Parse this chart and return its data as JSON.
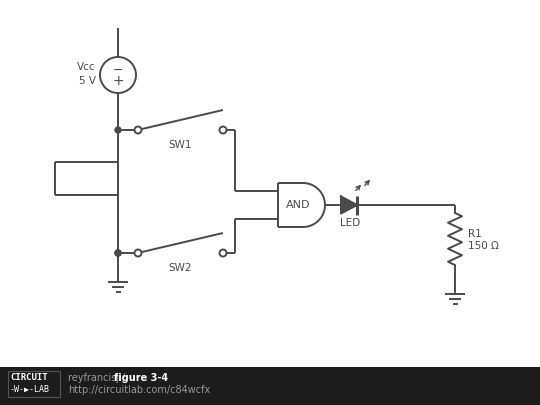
{
  "bg_color": "#ffffff",
  "lc": "#4a4a4a",
  "lw": 1.4,
  "footer_bg": "#1c1c1c",
  "footer_author": "reyfrancisj / ",
  "footer_title": "figure 3-4",
  "footer_url": "http://circuitlab.com/c84wcfx",
  "vcc_text": "Vcc\n5 V",
  "sw1_text": "SW1",
  "sw2_text": "SW2",
  "and_text": "AND",
  "led_text": "LED",
  "r1_text": "R1",
  "r1_val": "150 Ω"
}
